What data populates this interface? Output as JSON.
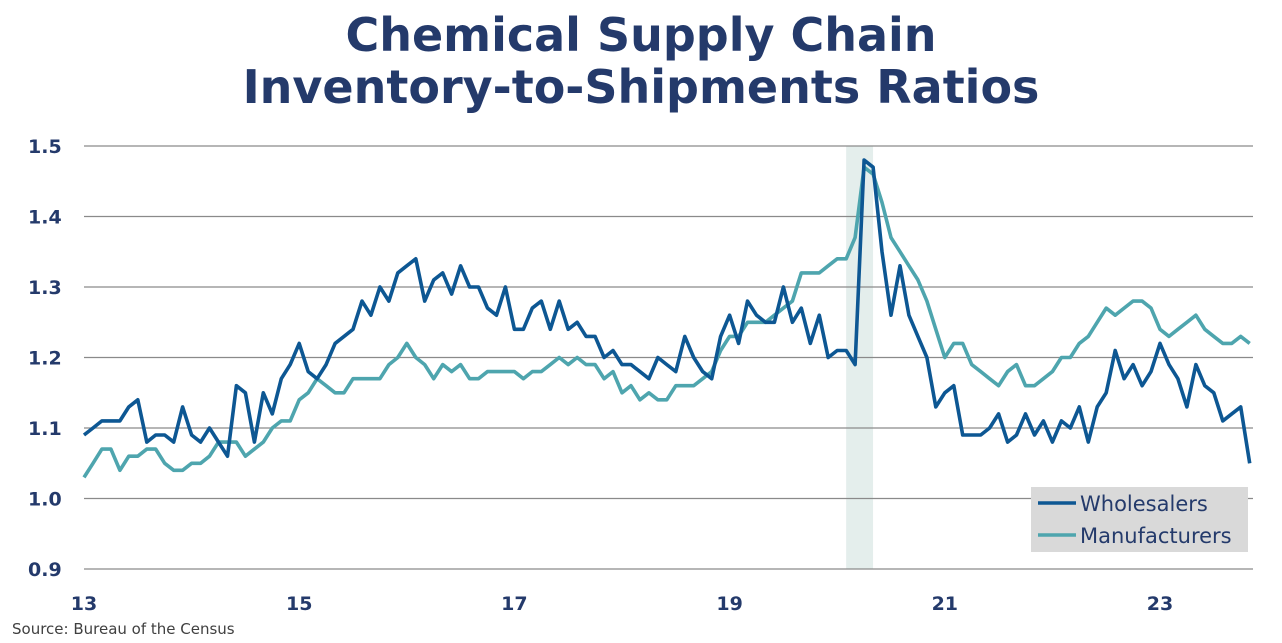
{
  "chart_data": {
    "type": "line",
    "title": "Chemical Supply Chain",
    "subtitle": "Inventory-to-Shipments Ratios",
    "source": "Source:  Bureau of the Census",
    "x_start": "2013-01",
    "frequency": "monthly",
    "x_ticks": [
      "13",
      "15",
      "17",
      "19",
      "21",
      "23"
    ],
    "xlim": [
      "2013-01",
      "2023-12"
    ],
    "ylim": [
      0.9,
      1.5
    ],
    "y_ticks": [
      "0.9",
      "1.0",
      "1.1",
      "1.2",
      "1.3",
      "1.4",
      "1.5"
    ],
    "grid": "horizontal",
    "legend_position": "bottom-right",
    "shaded_period": [
      "2020-02",
      "2020-04"
    ],
    "colors": {
      "Wholesalers": "#0d5793",
      "Manufacturers": "#4ea5ae",
      "shade": "#e4eeec",
      "legend_bg": "#d9d9d9"
    },
    "series": [
      {
        "name": "Wholesalers",
        "values": [
          1.09,
          1.1,
          1.11,
          1.11,
          1.11,
          1.13,
          1.14,
          1.08,
          1.09,
          1.09,
          1.08,
          1.13,
          1.09,
          1.08,
          1.1,
          1.08,
          1.06,
          1.16,
          1.15,
          1.08,
          1.15,
          1.12,
          1.17,
          1.19,
          1.22,
          1.18,
          1.17,
          1.19,
          1.22,
          1.23,
          1.24,
          1.28,
          1.26,
          1.3,
          1.28,
          1.32,
          1.33,
          1.34,
          1.28,
          1.31,
          1.32,
          1.29,
          1.33,
          1.3,
          1.3,
          1.27,
          1.26,
          1.3,
          1.24,
          1.24,
          1.27,
          1.28,
          1.24,
          1.28,
          1.24,
          1.25,
          1.23,
          1.23,
          1.2,
          1.21,
          1.19,
          1.19,
          1.18,
          1.17,
          1.2,
          1.19,
          1.18,
          1.23,
          1.2,
          1.18,
          1.17,
          1.23,
          1.26,
          1.22,
          1.28,
          1.26,
          1.25,
          1.25,
          1.3,
          1.25,
          1.27,
          1.22,
          1.26,
          1.2,
          1.21,
          1.21,
          1.19,
          1.48,
          1.47,
          1.35,
          1.26,
          1.33,
          1.26,
          1.23,
          1.2,
          1.13,
          1.15,
          1.16,
          1.09,
          1.09,
          1.09,
          1.1,
          1.12,
          1.08,
          1.09,
          1.12,
          1.09,
          1.11,
          1.08,
          1.11,
          1.1,
          1.13,
          1.08,
          1.13,
          1.15,
          1.21,
          1.17,
          1.19,
          1.16,
          1.18,
          1.22,
          1.19,
          1.17,
          1.13,
          1.19,
          1.16,
          1.15,
          1.11,
          1.12,
          1.13,
          1.05
        ]
      },
      {
        "name": "Manufacturers",
        "values": [
          1.03,
          1.05,
          1.07,
          1.07,
          1.04,
          1.06,
          1.06,
          1.07,
          1.07,
          1.05,
          1.04,
          1.04,
          1.05,
          1.05,
          1.06,
          1.08,
          1.08,
          1.08,
          1.06,
          1.07,
          1.08,
          1.1,
          1.11,
          1.11,
          1.14,
          1.15,
          1.17,
          1.16,
          1.15,
          1.15,
          1.17,
          1.17,
          1.17,
          1.17,
          1.19,
          1.2,
          1.22,
          1.2,
          1.19,
          1.17,
          1.19,
          1.18,
          1.19,
          1.17,
          1.17,
          1.18,
          1.18,
          1.18,
          1.18,
          1.17,
          1.18,
          1.18,
          1.19,
          1.2,
          1.19,
          1.2,
          1.19,
          1.19,
          1.17,
          1.18,
          1.15,
          1.16,
          1.14,
          1.15,
          1.14,
          1.14,
          1.16,
          1.16,
          1.16,
          1.17,
          1.18,
          1.21,
          1.23,
          1.23,
          1.25,
          1.25,
          1.25,
          1.26,
          1.27,
          1.28,
          1.32,
          1.32,
          1.32,
          1.33,
          1.34,
          1.34,
          1.37,
          1.47,
          1.46,
          1.42,
          1.37,
          1.35,
          1.33,
          1.31,
          1.28,
          1.24,
          1.2,
          1.22,
          1.22,
          1.19,
          1.18,
          1.17,
          1.16,
          1.18,
          1.19,
          1.16,
          1.16,
          1.17,
          1.18,
          1.2,
          1.2,
          1.22,
          1.23,
          1.25,
          1.27,
          1.26,
          1.27,
          1.28,
          1.28,
          1.27,
          1.24,
          1.23,
          1.24,
          1.25,
          1.26,
          1.24,
          1.23,
          1.22,
          1.22,
          1.23,
          1.22
        ]
      }
    ]
  }
}
